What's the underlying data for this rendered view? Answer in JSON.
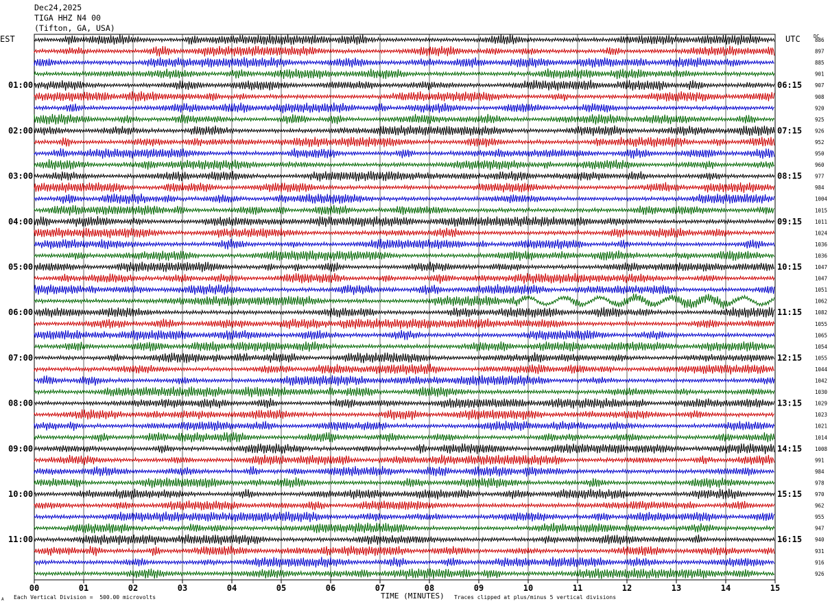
{
  "header": {
    "date": "Dec24,2025",
    "station": "TIGA HHZ N4 00",
    "location": "(Tifton, GA, USA)"
  },
  "left_tz": "EST",
  "right_tz": "UTC",
  "dc_label": "DC",
  "footer": {
    "corner_mark": "A",
    "scale_note": "Each Vertical Division =  500.00 microvolts",
    "clip_note": "Traces clipped at plus/minus 5 vertical divisions"
  },
  "chart_data": {
    "type": "line",
    "xlabel": "TIME (MINUTES)",
    "x_ticks": [
      "00",
      "01",
      "02",
      "03",
      "04",
      "05",
      "06",
      "07",
      "08",
      "09",
      "10",
      "11",
      "12",
      "13",
      "14",
      "15"
    ],
    "xlim": [
      0,
      15
    ],
    "left_time_labels": [
      "01:00",
      "02:00",
      "03:00",
      "04:00",
      "05:00",
      "06:00",
      "07:00",
      "08:00",
      "09:00",
      "10:00",
      "11:00"
    ],
    "right_time_labels": [
      "06:15",
      "07:15",
      "08:15",
      "09:15",
      "10:15",
      "11:15",
      "12:15",
      "13:15",
      "14:15",
      "15:15",
      "16:15"
    ],
    "trace_colors": [
      "#000000",
      "#cc0000",
      "#0000cc",
      "#006600"
    ],
    "dc_offsets": [
      886,
      897,
      885,
      901,
      907,
      908,
      920,
      925,
      926,
      952,
      950,
      960,
      977,
      984,
      1004,
      1015,
      1011,
      1024,
      1036,
      1036,
      1047,
      1047,
      1051,
      1062,
      1082,
      1055,
      1065,
      1054,
      1055,
      1044,
      1042,
      1030,
      1029,
      1023,
      1021,
      1014,
      1008,
      991,
      984,
      978,
      970,
      962,
      955,
      947,
      940,
      931,
      916,
      926
    ],
    "grid": true
  }
}
